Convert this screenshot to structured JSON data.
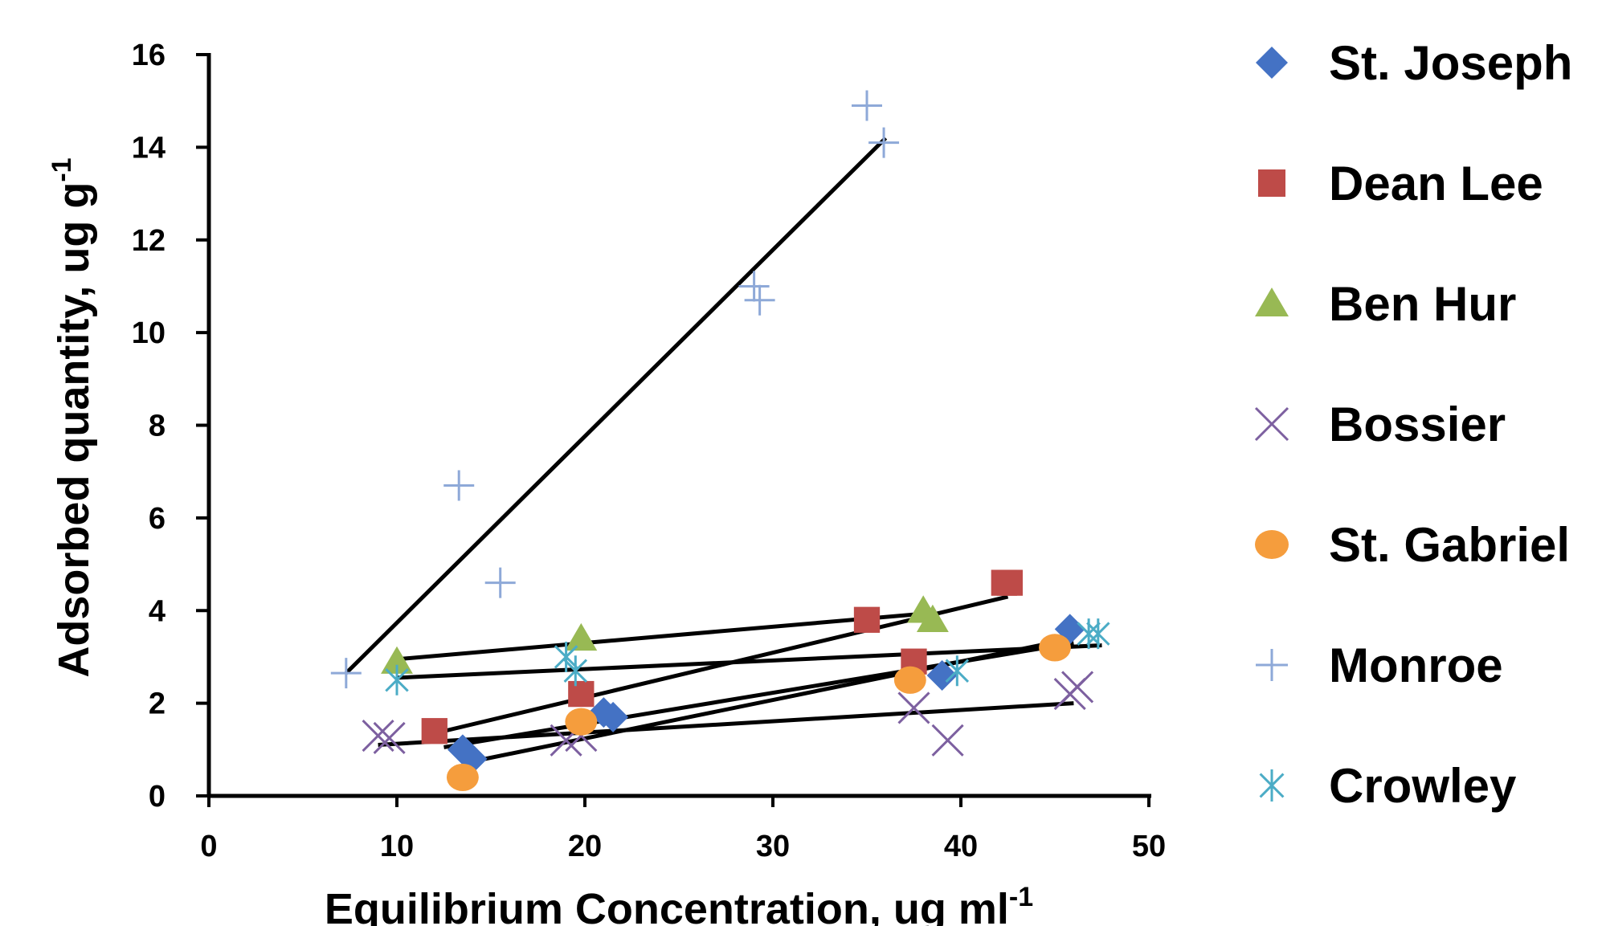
{
  "chart_data": {
    "type": "scatter",
    "title": "",
    "xlabel": "Equilibrium Concentration, ug ml",
    "xlabel_sup": "-1",
    "ylabel": "Adsorbed quantity, ug g",
    "ylabel_sup": "-1",
    "xlim": [
      0,
      50
    ],
    "ylim": [
      0,
      16
    ],
    "xticks": [
      "0",
      "10",
      "20",
      "30",
      "40",
      "50"
    ],
    "yticks": [
      "0",
      "2",
      "4",
      "6",
      "8",
      "10",
      "12",
      "14",
      "16"
    ],
    "grid": false,
    "legend_position": "right",
    "series": [
      {
        "name": "St. Joseph",
        "marker": "diamond",
        "color": "#4472C4",
        "points": [
          [
            13.5,
            1.0
          ],
          [
            14.0,
            0.8
          ],
          [
            21.0,
            1.8
          ],
          [
            21.5,
            1.7
          ],
          [
            39.0,
            2.6
          ],
          [
            45.8,
            3.6
          ]
        ],
        "fit": [
          [
            12.5,
            1.05
          ],
          [
            46,
            3.3
          ]
        ]
      },
      {
        "name": "Dean Lee",
        "marker": "square",
        "color": "#BE4B48",
        "points": [
          [
            12.0,
            1.4
          ],
          [
            19.8,
            2.2
          ],
          [
            35.0,
            3.8
          ],
          [
            37.5,
            2.9
          ],
          [
            42.3,
            4.6
          ],
          [
            42.6,
            4.6
          ]
        ],
        "fit": [
          [
            12,
            1.35
          ],
          [
            42.5,
            4.3
          ]
        ]
      },
      {
        "name": "Ben Hur",
        "marker": "triangle",
        "color": "#98B954",
        "points": [
          [
            10.0,
            2.9
          ],
          [
            19.8,
            3.4
          ],
          [
            38.0,
            4.0
          ],
          [
            38.5,
            3.8
          ]
        ],
        "fit": [
          [
            10,
            2.95
          ],
          [
            38.5,
            3.95
          ]
        ]
      },
      {
        "name": "Bossier",
        "marker": "x",
        "color": "#7D60A0",
        "points": [
          [
            9.0,
            1.3
          ],
          [
            9.6,
            1.25
          ],
          [
            19.0,
            1.2
          ],
          [
            19.8,
            1.3
          ],
          [
            37.5,
            1.9
          ],
          [
            39.3,
            1.2
          ],
          [
            45.8,
            2.2
          ],
          [
            46.2,
            2.35
          ]
        ],
        "fit": [
          [
            9,
            1.1
          ],
          [
            46,
            2.0
          ]
        ]
      },
      {
        "name": "St. Gabriel",
        "marker": "circle",
        "color": "#F59D3D",
        "points": [
          [
            13.5,
            0.4
          ],
          [
            19.8,
            1.6
          ],
          [
            37.3,
            2.5
          ],
          [
            45.0,
            3.2
          ]
        ],
        "fit": [
          [
            13.5,
            0.7
          ],
          [
            46,
            3.4
          ]
        ]
      },
      {
        "name": "Monroe",
        "marker": "plus",
        "color": "#8EA9D8",
        "points": [
          [
            7.3,
            2.65
          ],
          [
            13.3,
            6.7
          ],
          [
            15.5,
            4.6
          ],
          [
            29.0,
            11.0
          ],
          [
            29.3,
            10.7
          ],
          [
            35.0,
            14.9
          ],
          [
            35.9,
            14.1
          ]
        ],
        "fit": [
          [
            7.3,
            2.65
          ],
          [
            36,
            14.2
          ]
        ]
      },
      {
        "name": "Crowley",
        "marker": "asterisk",
        "color": "#4BACC6",
        "points": [
          [
            10.0,
            2.5
          ],
          [
            19.0,
            3.0
          ],
          [
            19.5,
            2.7
          ],
          [
            39.8,
            2.7
          ],
          [
            46.8,
            3.5
          ],
          [
            47.3,
            3.5
          ]
        ],
        "fit": [
          [
            10,
            2.55
          ],
          [
            47.5,
            3.25
          ]
        ]
      }
    ]
  }
}
